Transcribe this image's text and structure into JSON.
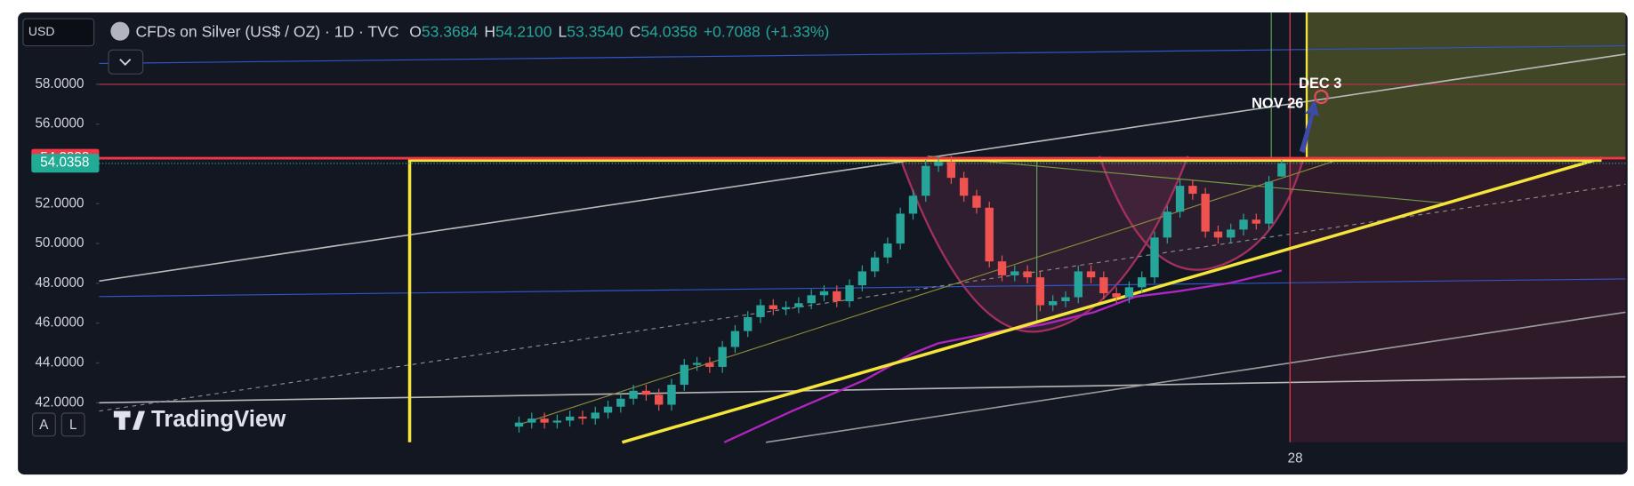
{
  "toolbar": {
    "currency": "USD",
    "buttons": [
      "A",
      "L"
    ]
  },
  "watermark": "TradingView",
  "chart_data": {
    "type": "candlestick",
    "title": "CFDs on Silver (US$ / OZ) · 1D · TVC",
    "ohlc_keys": [
      "O",
      "H",
      "L",
      "C"
    ],
    "ohlc_labels": [
      "53.3684",
      "54.2100",
      "53.3540",
      "54.0358"
    ],
    "change": 0.7088,
    "change_label": "+0.7088",
    "change_percent": 1.33,
    "change_percent_label": "(+1.33%)",
    "annotations": [
      "NOV 26",
      "DEC 3"
    ],
    "categories": [
      null,
      null,
      null,
      null,
      null,
      null,
      null,
      null,
      null,
      null,
      null,
      null,
      null,
      null,
      null,
      null,
      null,
      null,
      null,
      null,
      null,
      null,
      null,
      null,
      null,
      null,
      null,
      null,
      null,
      null,
      null,
      null,
      null,
      null,
      null,
      null,
      null,
      null,
      null,
      null,
      null,
      null,
      null,
      null,
      null,
      null,
      null,
      null,
      null,
      null,
      null,
      null,
      null,
      null,
      null,
      null,
      null,
      null,
      null,
      null,
      "28"
    ],
    "open": [
      40.8,
      41.0,
      41.2,
      41.0,
      41.1,
      41.3,
      41.2,
      41.5,
      41.8,
      42.2,
      42.6,
      42.4,
      41.9,
      42.9,
      43.9,
      44.0,
      43.8,
      44.8,
      45.6,
      46.3,
      46.9,
      46.7,
      46.8,
      47.0,
      47.4,
      47.6,
      47.1,
      47.9,
      48.6,
      49.3,
      50.0,
      51.5,
      52.4,
      53.9,
      54.1,
      53.3,
      52.4,
      51.8,
      49.1,
      48.4,
      48.6,
      48.3,
      46.9,
      47.1,
      47.3,
      48.6,
      48.3,
      47.5,
      47.3,
      47.8,
      48.3,
      50.3,
      51.6,
      52.9,
      52.5,
      50.6,
      50.3,
      50.7,
      51.2,
      51.0,
      53.3684
    ],
    "high": [
      41.3,
      41.5,
      41.5,
      41.4,
      41.6,
      41.6,
      41.8,
      42.1,
      42.5,
      42.9,
      42.9,
      42.7,
      43.2,
      44.2,
      44.3,
      44.3,
      45.1,
      45.9,
      46.6,
      47.2,
      47.2,
      47.1,
      47.3,
      47.7,
      47.9,
      47.9,
      48.2,
      48.9,
      49.6,
      50.3,
      51.8,
      52.7,
      54.2,
      54.4,
      54.4,
      53.6,
      52.7,
      52.1,
      49.4,
      48.9,
      48.9,
      48.6,
      47.4,
      47.6,
      48.9,
      48.9,
      48.6,
      47.8,
      48.1,
      48.6,
      50.6,
      51.9,
      53.2,
      53.2,
      52.8,
      50.9,
      51.0,
      51.5,
      51.5,
      53.4,
      54.21
    ],
    "low": [
      40.5,
      40.7,
      40.7,
      40.7,
      40.8,
      40.9,
      40.9,
      41.2,
      41.5,
      41.9,
      42.1,
      41.6,
      41.6,
      42.6,
      43.6,
      43.5,
      43.5,
      44.5,
      45.3,
      46.0,
      46.4,
      46.4,
      46.5,
      46.7,
      47.1,
      46.8,
      46.8,
      47.6,
      48.3,
      49.0,
      49.7,
      51.2,
      52.1,
      53.6,
      53.0,
      52.1,
      51.5,
      48.8,
      48.1,
      48.1,
      48.0,
      46.6,
      46.6,
      46.8,
      47.0,
      48.0,
      47.2,
      47.0,
      47.0,
      47.5,
      48.0,
      50.0,
      51.3,
      52.2,
      50.3,
      50.0,
      50.0,
      50.4,
      50.7,
      50.7,
      53.354
    ],
    "close": [
      41.0,
      41.2,
      41.0,
      41.1,
      41.3,
      41.2,
      41.5,
      41.8,
      42.2,
      42.6,
      42.4,
      41.9,
      42.9,
      43.9,
      44.0,
      43.8,
      44.8,
      45.6,
      46.3,
      46.9,
      46.7,
      46.8,
      47.0,
      47.4,
      47.6,
      47.1,
      47.9,
      48.6,
      49.3,
      50.0,
      51.5,
      52.4,
      53.9,
      54.1,
      53.3,
      52.4,
      51.8,
      49.1,
      48.4,
      48.6,
      48.3,
      46.9,
      47.1,
      47.3,
      48.6,
      48.3,
      47.5,
      47.3,
      47.8,
      48.3,
      50.3,
      51.6,
      52.9,
      52.5,
      50.6,
      50.3,
      50.7,
      51.2,
      51.0,
      53.1,
      54.0358
    ],
    "up_color": "#26a69a",
    "down_color": "#ef5350",
    "ylim": [
      40.01,
      61.61
    ],
    "yticks": [
      {
        "value": 42,
        "label": "42.0000"
      },
      {
        "value": 44,
        "label": "44.0000"
      },
      {
        "value": 46,
        "label": "46.0000"
      },
      {
        "value": 48,
        "label": "48.0000"
      },
      {
        "value": 50,
        "label": "50.0000"
      },
      {
        "value": 52,
        "label": "52.0000"
      },
      {
        "value": 54,
        "label": "54.0000"
      },
      {
        "value": 56,
        "label": "56.0000"
      },
      {
        "value": 58,
        "label": "58.0000"
      }
    ],
    "price_tags": [
      {
        "value": 54.2838,
        "label": "54.2838",
        "color": "#f23645"
      },
      {
        "value": 54.0358,
        "label": "54.0358",
        "color": "#22ab94"
      }
    ]
  }
}
